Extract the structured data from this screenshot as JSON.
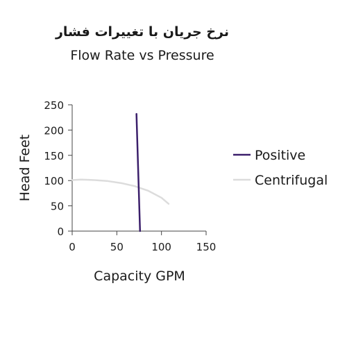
{
  "chart_data": {
    "type": "line",
    "title": "نرخ جریان با تغییرات فشار",
    "subtitle": "Flow Rate vs Pressure",
    "xlabel": "Capacity GPM",
    "ylabel": "Head Feet",
    "xlim": [
      0,
      150
    ],
    "ylim": [
      0,
      250
    ],
    "x_ticks": [
      0,
      50,
      100,
      150
    ],
    "y_ticks": [
      0,
      50,
      100,
      150,
      200,
      250
    ],
    "grid": false,
    "legend_position": "right",
    "series": [
      {
        "name": "Positive",
        "color": "#3b1f6b",
        "points": [
          {
            "x": 72,
            "y": 232
          },
          {
            "x": 76,
            "y": 0
          }
        ]
      },
      {
        "name": "Centrifugal",
        "color": "#dcdcdc",
        "points": [
          {
            "x": 0,
            "y": 101
          },
          {
            "x": 10,
            "y": 102
          },
          {
            "x": 25,
            "y": 101
          },
          {
            "x": 40,
            "y": 99
          },
          {
            "x": 55,
            "y": 95
          },
          {
            "x": 70,
            "y": 89
          },
          {
            "x": 85,
            "y": 80
          },
          {
            "x": 100,
            "y": 66
          },
          {
            "x": 108,
            "y": 54
          }
        ]
      }
    ]
  }
}
